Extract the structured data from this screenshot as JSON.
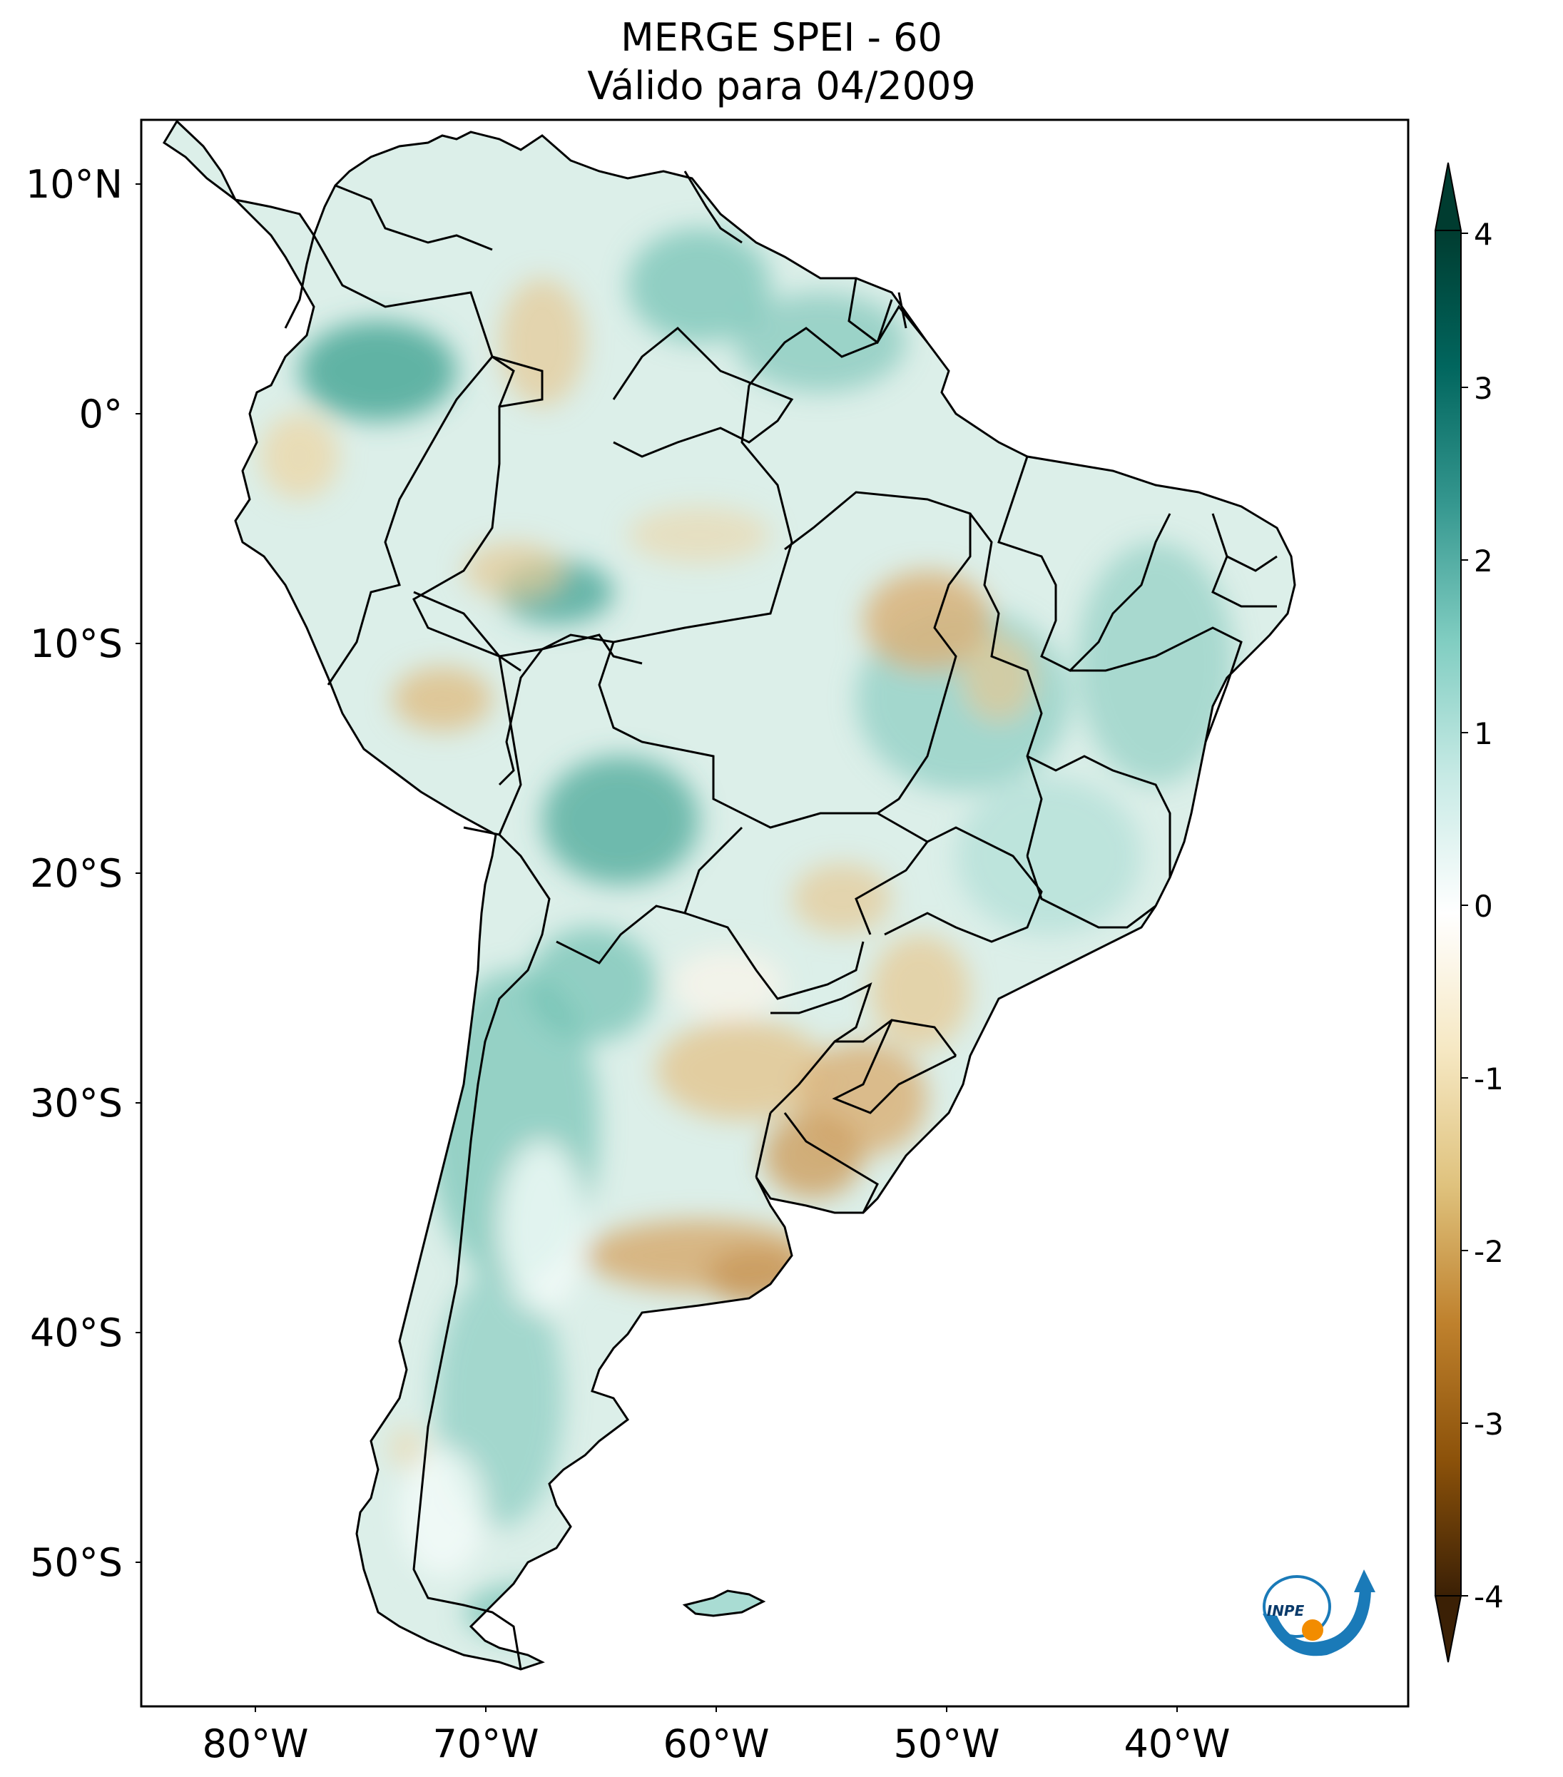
{
  "title": {
    "line1": "MERGE   SPEI - 60",
    "line2": "Válido para 04/2009"
  },
  "map": {
    "lon_range": [
      -85,
      -30
    ],
    "lat_range": [
      -56,
      13
    ],
    "lat_labels": [
      "10°N",
      "0°",
      "10°S",
      "20°S",
      "30°S",
      "40°S",
      "50°S"
    ],
    "lon_labels": [
      "80°W",
      "70°W",
      "60°W",
      "50°W",
      "40°W"
    ],
    "colors": {
      "land_base": "#d9f0ea",
      "wet": "#5fb6a6",
      "dry": "#d9b27a",
      "border": "#000000",
      "ocean": "#ffffff"
    }
  },
  "colorbar": {
    "ticks": [
      "4",
      "3",
      "2",
      "1",
      "0",
      "-1",
      "-2",
      "-3",
      "-4"
    ],
    "range": [
      -4,
      4
    ],
    "extend": "both",
    "colormap": "BrBG",
    "stops": [
      "#3b2005",
      "#8c520a",
      "#bf812d",
      "#dfc27d",
      "#f6e8c3",
      "#ffffff",
      "#c7eae5",
      "#80cdc1",
      "#35978f",
      "#01665e",
      "#003c30"
    ]
  },
  "logo": {
    "text": "INPE",
    "colors": {
      "arc": "#1a7ab8",
      "dot": "#f28c00"
    }
  }
}
